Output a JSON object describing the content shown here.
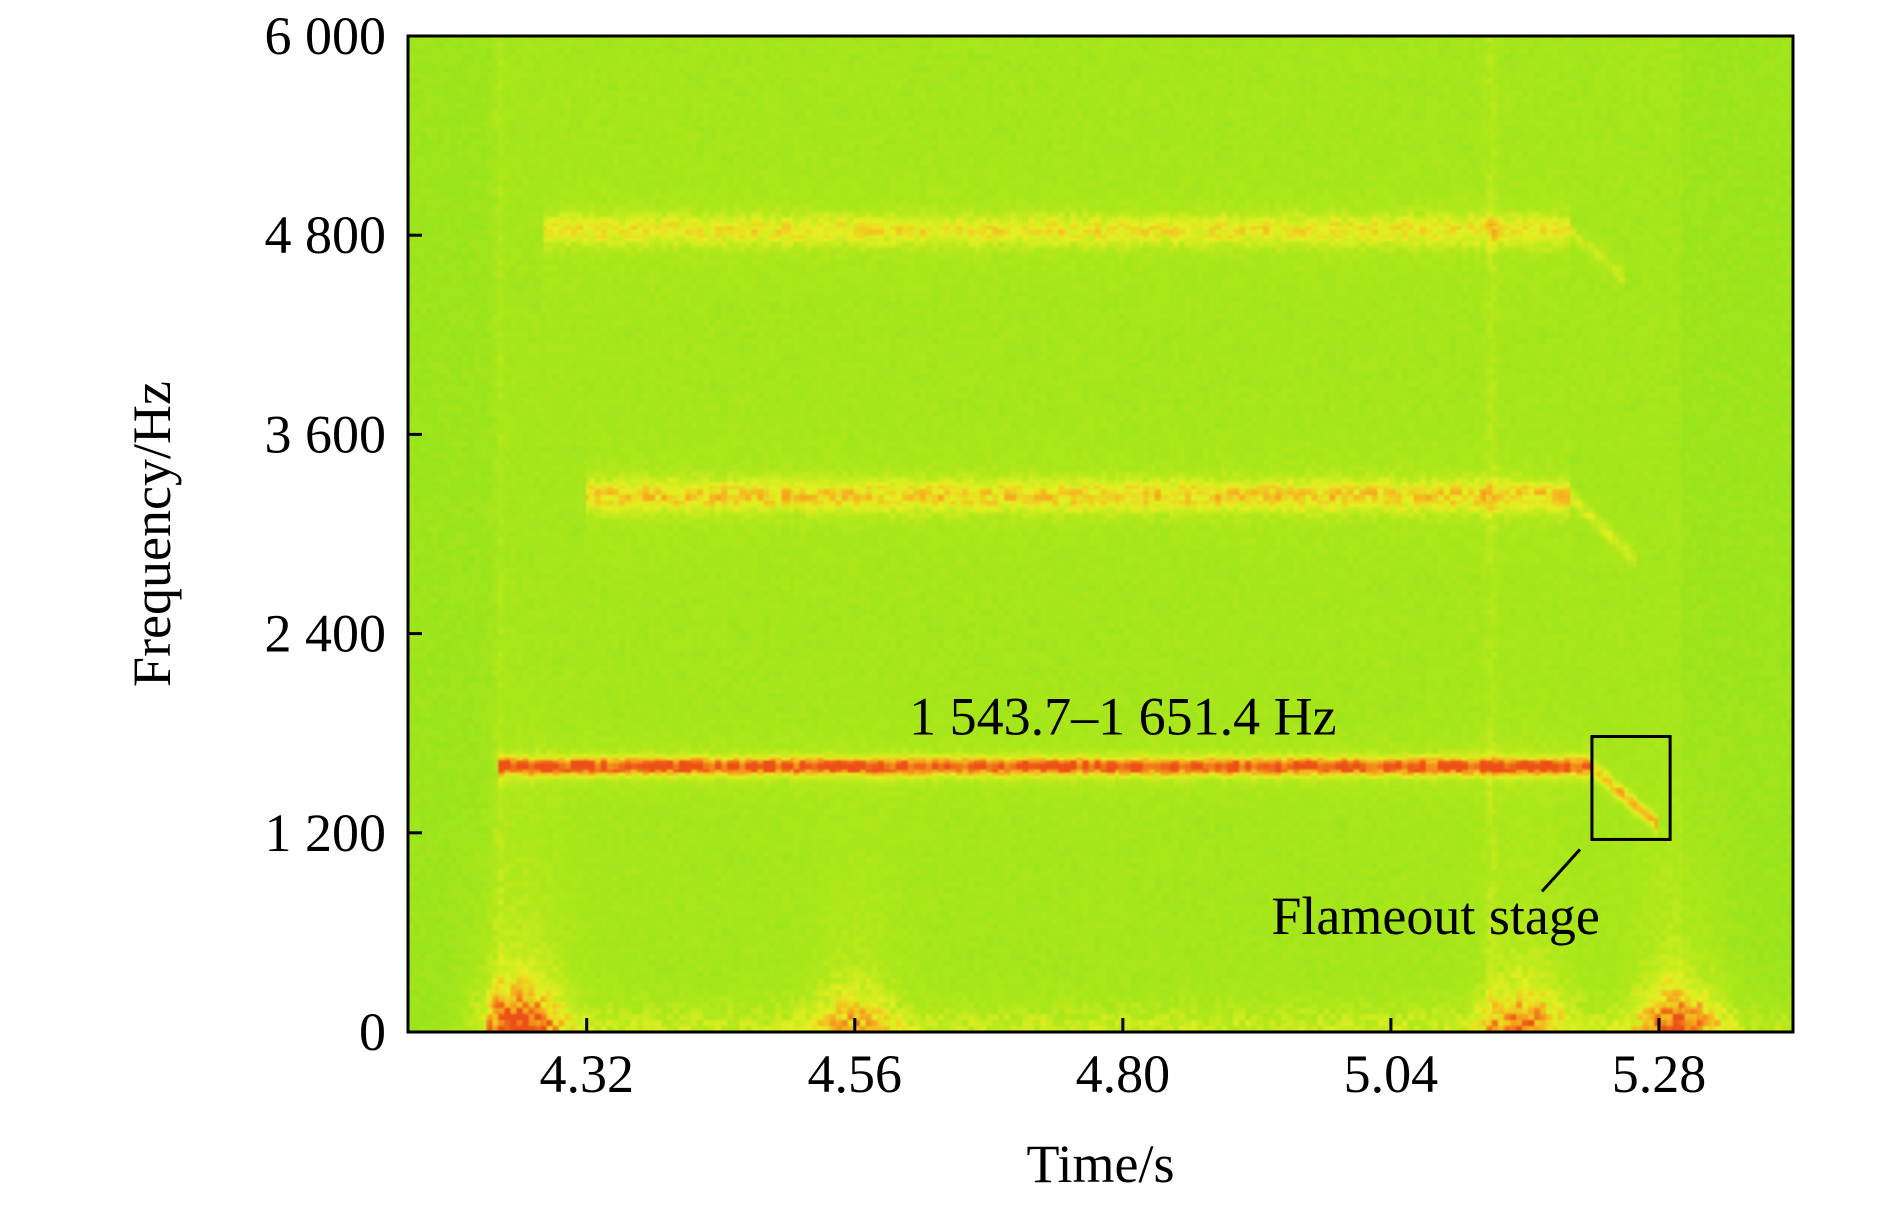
{
  "chart_data": {
    "type": "heatmap",
    "title": "",
    "xlabel": "Time/s",
    "ylabel": "Frequency/Hz",
    "xlim": [
      4.16,
      5.4
    ],
    "ylim": [
      0,
      6000
    ],
    "x_ticks": [
      {
        "value": 4.32,
        "label": "4.32"
      },
      {
        "value": 4.56,
        "label": "4.56"
      },
      {
        "value": 4.8,
        "label": "4.80"
      },
      {
        "value": 5.04,
        "label": "5.04"
      },
      {
        "value": 5.28,
        "label": "5.28"
      }
    ],
    "y_ticks": [
      {
        "value": 0,
        "label": "0"
      },
      {
        "value": 1200,
        "label": "1 200"
      },
      {
        "value": 2400,
        "label": "2 400"
      },
      {
        "value": 3600,
        "label": "3 600"
      },
      {
        "value": 4800,
        "label": "4 800"
      },
      {
        "value": 6000,
        "label": "6 000"
      }
    ],
    "grid": false,
    "colors": {
      "background": "#8fe41c",
      "signal_low": "#b6ea1a",
      "signal_mid": "#e8f020",
      "signal_high": "#f5a81e",
      "signal_peak": "#ee5a18"
    },
    "signal_start_time": 4.24,
    "harmonics": [
      {
        "f_start": 1600,
        "f_end": 1600,
        "t_start": 4.24,
        "t_end": 5.22,
        "intensity": 1.0
      },
      {
        "f_start": 3230,
        "f_end": 3230,
        "t_start": 4.32,
        "t_end": 5.2,
        "intensity": 0.55
      },
      {
        "f_start": 4830,
        "f_end": 4830,
        "t_start": 4.28,
        "t_end": 5.2,
        "intensity": 0.45
      }
    ],
    "flameout_sweeps": [
      {
        "t_start": 5.22,
        "t_end": 5.28,
        "f_start": 1600,
        "f_end": 1240,
        "intensity": 0.9
      },
      {
        "t_start": 5.2,
        "t_end": 5.26,
        "f_start": 3230,
        "f_end": 2840,
        "intensity": 0.45
      },
      {
        "t_start": 5.2,
        "t_end": 5.25,
        "f_start": 4830,
        "f_end": 4530,
        "intensity": 0.35
      }
    ],
    "vertical_transients": [
      {
        "t": 4.24,
        "intensity": 0.45
      },
      {
        "t": 5.13,
        "intensity": 0.5
      }
    ],
    "low_freq_hotspots": [
      {
        "t": 4.26,
        "intensity": 1.0
      },
      {
        "t": 4.56,
        "intensity": 0.55
      },
      {
        "t": 5.16,
        "intensity": 0.7
      },
      {
        "t": 5.3,
        "intensity": 0.9
      }
    ],
    "annotations": [
      {
        "text": "1 543.7–1 651.4 Hz",
        "x": 4.8,
        "y": 1900
      },
      {
        "text": "Flameout stage",
        "x": 5.08,
        "y": 700
      }
    ],
    "highlight_box": {
      "x0": 5.22,
      "x1": 5.29,
      "y0": 1160,
      "y1": 1780
    }
  }
}
